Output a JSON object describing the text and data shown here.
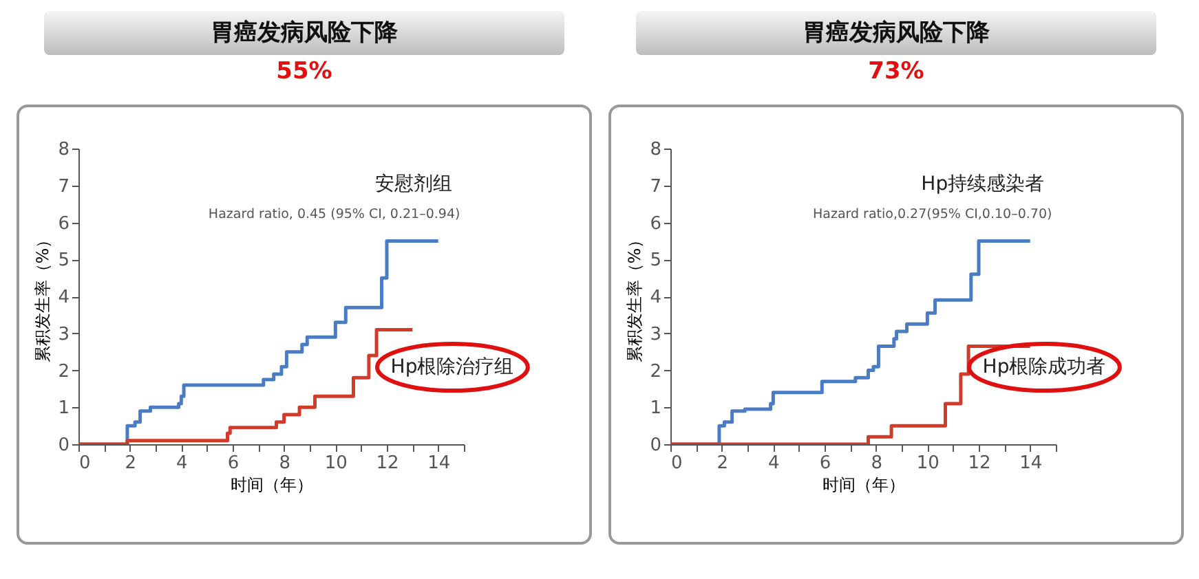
{
  "chart_data": [
    {
      "type": "step",
      "title": "胃癌发病风险下降",
      "subtitle": "55%",
      "xlabel": "时间（年）",
      "ylabel": "累积发生率（%）",
      "xlim": [
        0,
        15
      ],
      "ylim": [
        0,
        8
      ],
      "xticks": [
        0,
        {
          "value": 1,
          "label": null
        },
        2,
        {
          "value": 3,
          "label": null
        },
        4,
        {
          "value": 5,
          "label": null
        },
        6,
        {
          "value": 7,
          "label": null
        },
        8,
        {
          "value": 9,
          "label": null
        },
        10,
        {
          "value": 11,
          "label": null
        },
        12,
        {
          "value": 13,
          "label": null
        },
        14,
        {
          "value": 15,
          "label": null
        }
      ],
      "yticks": [
        0,
        1,
        2,
        3,
        4,
        5,
        6,
        7,
        8
      ],
      "grid": false,
      "legend": false,
      "annotations": [
        "Hazard ratio, 0.45 (95% CI, 0.21–0.94)"
      ],
      "series": [
        {
          "name": "安慰剂组",
          "color": "#4a7cc4",
          "x": [
            0,
            1.9,
            2.2,
            2.4,
            2.8,
            3.9,
            4.0,
            4.1,
            7.2,
            7.6,
            7.9,
            8.1,
            8.7,
            8.9,
            10.0,
            10.4,
            11.8,
            12.0,
            14.0
          ],
          "values": [
            0,
            0.5,
            0.6,
            0.9,
            1.0,
            1.1,
            1.3,
            1.6,
            1.75,
            1.9,
            2.1,
            2.5,
            2.7,
            2.9,
            3.3,
            3.7,
            4.5,
            5.5,
            5.5
          ]
        },
        {
          "name": "Hp根除治疗组",
          "color": "#d23a2a",
          "x": [
            0,
            1.9,
            5.8,
            5.9,
            7.7,
            8.0,
            8.6,
            9.2,
            10.7,
            11.3,
            11.6,
            13.0
          ],
          "values": [
            0,
            0.1,
            0.3,
            0.45,
            0.6,
            0.8,
            1.0,
            1.3,
            1.8,
            2.4,
            3.1,
            3.1
          ]
        }
      ]
    },
    {
      "type": "step",
      "title": "胃癌发病风险下降",
      "subtitle": "73%",
      "xlabel": "时间（年）",
      "ylabel": "累积发生率（%）",
      "xlim": [
        0,
        15
      ],
      "ylim": [
        0,
        8
      ],
      "xticks": [
        0,
        {
          "value": 1,
          "label": null
        },
        2,
        {
          "value": 3,
          "label": null
        },
        4,
        {
          "value": 5,
          "label": null
        },
        6,
        {
          "value": 7,
          "label": null
        },
        8,
        {
          "value": 9,
          "label": null
        },
        10,
        {
          "value": 11,
          "label": null
        },
        12,
        {
          "value": 13,
          "label": null
        },
        14,
        {
          "value": 15,
          "label": null
        }
      ],
      "yticks": [
        0,
        1,
        2,
        3,
        4,
        5,
        6,
        7,
        8
      ],
      "grid": false,
      "legend": false,
      "annotations": [
        "Hazard ratio,0.27(95% CI,0.10–0.70)"
      ],
      "series": [
        {
          "name": "Hp持续感染者",
          "color": "#4a7cc4",
          "x": [
            0,
            1.9,
            2.1,
            2.4,
            2.9,
            3.9,
            4.0,
            5.9,
            7.2,
            7.7,
            7.9,
            8.1,
            8.7,
            8.8,
            9.2,
            10.0,
            10.3,
            11.7,
            12.0,
            14.0
          ],
          "values": [
            0,
            0.5,
            0.6,
            0.9,
            0.95,
            1.1,
            1.4,
            1.7,
            1.8,
            2.0,
            2.1,
            2.65,
            2.85,
            3.05,
            3.25,
            3.55,
            3.9,
            4.6,
            5.5,
            5.5
          ]
        },
        {
          "name": "Hp根除成功者",
          "color": "#d23a2a",
          "x": [
            0,
            7.7,
            8.6,
            10.7,
            11.3,
            11.6,
            14.0
          ],
          "values": [
            0,
            0.2,
            0.5,
            1.1,
            1.9,
            2.65,
            2.65
          ]
        }
      ]
    }
  ]
}
